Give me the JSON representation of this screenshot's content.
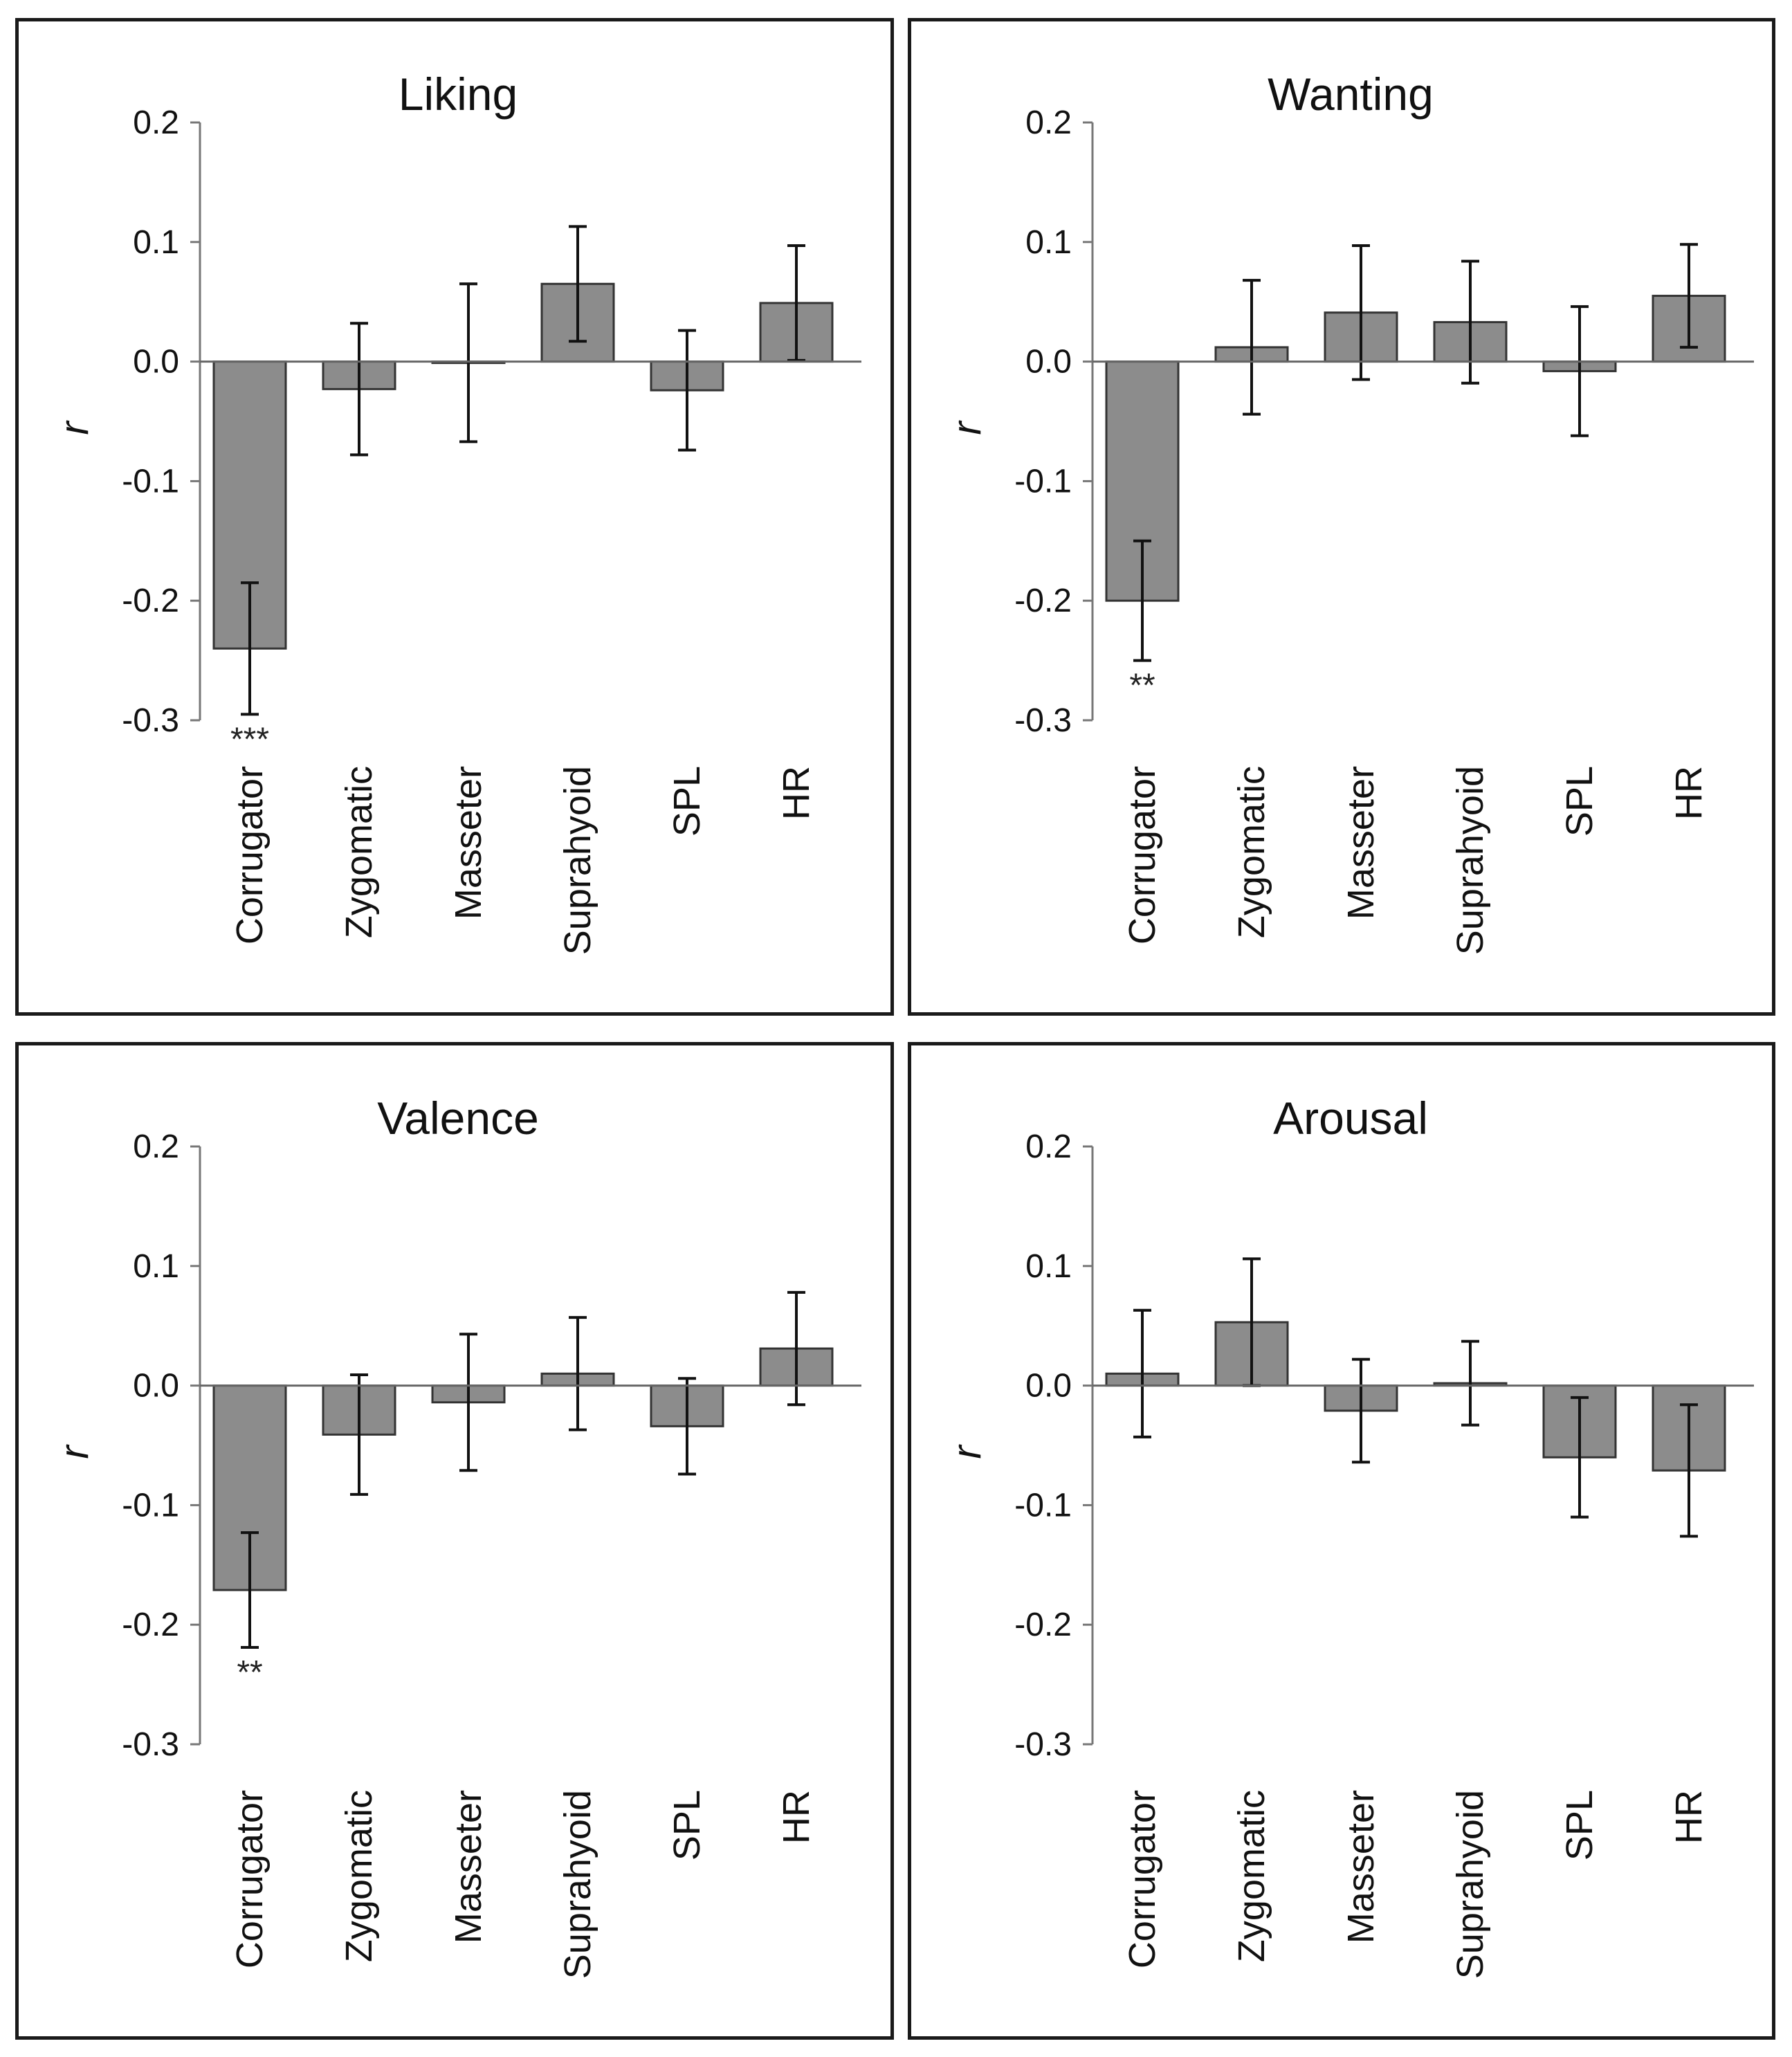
{
  "chart_data": [
    {
      "type": "bar",
      "title": "Liking",
      "ylabel": "r",
      "xlabel": "",
      "ylim": [
        -0.3,
        0.2
      ],
      "yticks": [
        "0.2",
        "0.1",
        "0.0",
        "-0.1",
        "-0.2",
        "-0.3"
      ],
      "categories": [
        "Corrugator",
        "Zygomatic",
        "Masseter",
        "Suprahyoid",
        "SPL",
        "HR"
      ],
      "values": [
        -0.24,
        -0.023,
        -0.001,
        0.065,
        -0.024,
        0.049
      ],
      "error": [
        0.055,
        0.055,
        0.066,
        0.048,
        0.05,
        0.048
      ],
      "significance": [
        "***",
        "",
        "",
        "",
        "",
        ""
      ],
      "bar_color": "#8c8c8c"
    },
    {
      "type": "bar",
      "title": "Wanting",
      "ylabel": "r",
      "xlabel": "",
      "ylim": [
        -0.3,
        0.2
      ],
      "yticks": [
        "0.2",
        "0.1",
        "0.0",
        "-0.1",
        "-0.2",
        "-0.3"
      ],
      "categories": [
        "Corrugator",
        "Zygomatic",
        "Masseter",
        "Suprahyoid",
        "SPL",
        "HR"
      ],
      "values": [
        -0.2,
        0.012,
        0.041,
        0.033,
        -0.008,
        0.055
      ],
      "error": [
        0.05,
        0.056,
        0.056,
        0.051,
        0.054,
        0.043
      ],
      "significance": [
        "**",
        "",
        "",
        "",
        "",
        ""
      ],
      "bar_color": "#8c8c8c"
    },
    {
      "type": "bar",
      "title": "Valence",
      "ylabel": "r",
      "xlabel": "",
      "ylim": [
        -0.3,
        0.2
      ],
      "yticks": [
        "0.2",
        "0.1",
        "0.0",
        "-0.1",
        "-0.2",
        "-0.3"
      ],
      "categories": [
        "Corrugator",
        "Zygomatic",
        "Masseter",
        "Suprahyoid",
        "SPL",
        "HR"
      ],
      "values": [
        -0.171,
        -0.041,
        -0.014,
        0.01,
        -0.034,
        0.031
      ],
      "error": [
        0.048,
        0.05,
        0.057,
        0.047,
        0.04,
        0.047
      ],
      "significance": [
        "**",
        "",
        "",
        "",
        "",
        ""
      ],
      "bar_color": "#8c8c8c"
    },
    {
      "type": "bar",
      "title": "Arousal",
      "ylabel": "r",
      "xlabel": "",
      "ylim": [
        -0.3,
        0.2
      ],
      "yticks": [
        "0.2",
        "0.1",
        "0.0",
        "-0.1",
        "-0.2",
        "-0.3"
      ],
      "categories": [
        "Corrugator",
        "Zygomatic",
        "Masseter",
        "Suprahyoid",
        "SPL",
        "HR"
      ],
      "values": [
        0.01,
        0.053,
        -0.021,
        0.002,
        -0.06,
        -0.071
      ],
      "error": [
        0.053,
        0.053,
        0.043,
        0.035,
        0.05,
        0.055
      ],
      "significance": [
        "",
        "",
        "",
        "",
        "",
        ""
      ],
      "bar_color": "#8c8c8c"
    }
  ]
}
